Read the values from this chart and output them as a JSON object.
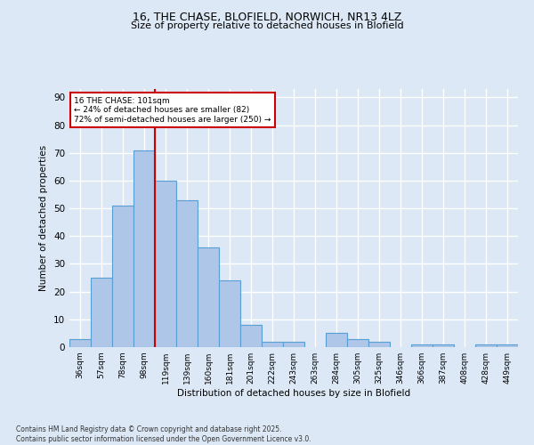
{
  "title_line1": "16, THE CHASE, BLOFIELD, NORWICH, NR13 4LZ",
  "title_line2": "Size of property relative to detached houses in Blofield",
  "xlabel": "Distribution of detached houses by size in Blofield",
  "ylabel": "Number of detached properties",
  "categories": [
    "36sqm",
    "57sqm",
    "78sqm",
    "98sqm",
    "119sqm",
    "139sqm",
    "160sqm",
    "181sqm",
    "201sqm",
    "222sqm",
    "243sqm",
    "263sqm",
    "284sqm",
    "305sqm",
    "325sqm",
    "346sqm",
    "366sqm",
    "387sqm",
    "408sqm",
    "428sqm",
    "449sqm"
  ],
  "values": [
    3,
    25,
    51,
    71,
    60,
    53,
    36,
    24,
    8,
    2,
    2,
    0,
    5,
    3,
    2,
    0,
    1,
    1,
    0,
    1,
    1
  ],
  "bar_color": "#aec6e8",
  "bar_edge_color": "#5a9fd4",
  "vline_x": 3.5,
  "vline_color": "#cc0000",
  "annotation_text": "16 THE CHASE: 101sqm\n← 24% of detached houses are smaller (82)\n72% of semi-detached houses are larger (250) →",
  "annotation_box_color": "#ffffff",
  "annotation_box_edge": "#cc0000",
  "ylim": [
    0,
    93
  ],
  "yticks": [
    0,
    10,
    20,
    30,
    40,
    50,
    60,
    70,
    80,
    90
  ],
  "background_color": "#dce8f5",
  "grid_color": "#ffffff",
  "footnote": "Contains HM Land Registry data © Crown copyright and database right 2025.\nContains public sector information licensed under the Open Government Licence v3.0."
}
